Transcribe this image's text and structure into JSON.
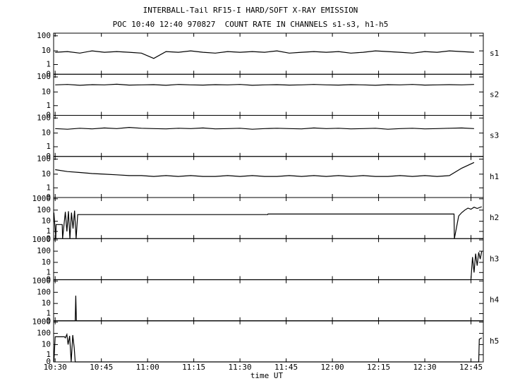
{
  "title": "INTERBALL-Tail RF15-I HARD/SOFT X-RAY EMISSION",
  "subtitle": "POC 10:40 12:40 970827  COUNT RATE IN CHANNELS s1-s3, h1-h5",
  "chart_data": [
    {
      "type": "line",
      "label": "s1",
      "yscale": "log",
      "color": "#000000",
      "ylim": [
        0,
        150
      ],
      "yticks": [
        0,
        1,
        10,
        100
      ],
      "x": [
        630,
        634,
        638,
        642,
        646,
        650,
        654,
        658,
        662,
        666,
        670,
        674,
        678,
        682,
        686,
        690,
        694,
        698,
        702,
        706,
        710,
        714,
        718,
        722,
        726,
        730,
        734,
        738,
        742,
        746,
        750,
        754,
        758,
        762,
        766
      ],
      "values": [
        8,
        9,
        7,
        10,
        8,
        9,
        8,
        7,
        3,
        9,
        8,
        10,
        8,
        7,
        9,
        8,
        9,
        8,
        10,
        7,
        8,
        9,
        8,
        9,
        7,
        8,
        10,
        9,
        8,
        7,
        9,
        8,
        10,
        9,
        8
      ]
    },
    {
      "type": "line",
      "label": "s2",
      "yscale": "log",
      "color": "#000000",
      "ylim": [
        0,
        150
      ],
      "yticks": [
        0,
        1,
        10,
        100
      ],
      "x": [
        630,
        634,
        638,
        642,
        646,
        650,
        654,
        658,
        662,
        666,
        670,
        674,
        678,
        682,
        686,
        690,
        694,
        698,
        702,
        706,
        710,
        714,
        718,
        722,
        726,
        730,
        734,
        738,
        742,
        746,
        750,
        754,
        758,
        762,
        766
      ],
      "values": [
        30,
        32,
        28,
        31,
        30,
        33,
        29,
        30,
        31,
        28,
        32,
        30,
        29,
        31,
        30,
        32,
        28,
        30,
        31,
        29,
        30,
        32,
        30,
        29,
        31,
        30,
        28,
        31,
        30,
        32,
        29,
        30,
        31,
        30,
        32
      ]
    },
    {
      "type": "line",
      "label": "s3",
      "yscale": "log",
      "color": "#000000",
      "ylim": [
        0,
        150
      ],
      "yticks": [
        0,
        1,
        10,
        100
      ],
      "x": [
        630,
        634,
        638,
        642,
        646,
        650,
        654,
        658,
        662,
        666,
        670,
        674,
        678,
        682,
        686,
        690,
        694,
        698,
        702,
        706,
        710,
        714,
        718,
        722,
        726,
        730,
        734,
        738,
        742,
        746,
        750,
        754,
        758,
        762,
        766
      ],
      "values": [
        20,
        18,
        21,
        19,
        22,
        20,
        24,
        21,
        20,
        19,
        21,
        20,
        22,
        19,
        20,
        21,
        18,
        20,
        21,
        20,
        19,
        22,
        20,
        21,
        19,
        20,
        21,
        18,
        20,
        21,
        19,
        20,
        21,
        22,
        20
      ]
    },
    {
      "type": "line",
      "label": "h1",
      "yscale": "log",
      "color": "#000000",
      "ylim": [
        0,
        150
      ],
      "yticks": [
        0,
        1,
        10,
        100
      ],
      "x": [
        630,
        634,
        638,
        642,
        646,
        650,
        654,
        658,
        662,
        666,
        670,
        674,
        678,
        682,
        686,
        690,
        694,
        698,
        702,
        706,
        710,
        714,
        718,
        722,
        726,
        730,
        734,
        738,
        742,
        746,
        750,
        754,
        758,
        762,
        766
      ],
      "values": [
        20,
        15,
        13,
        11,
        10,
        9,
        8,
        8,
        7,
        8,
        7,
        8,
        7,
        7,
        8,
        7,
        8,
        7,
        7,
        8,
        7,
        8,
        7,
        8,
        7,
        8,
        7,
        7,
        8,
        7,
        8,
        7,
        8,
        25,
        60
      ]
    },
    {
      "type": "line",
      "label": "h2",
      "yscale": "log",
      "color": "#000000",
      "ylim": [
        0,
        1300
      ],
      "yticks": [
        0,
        1,
        10,
        100,
        1000
      ],
      "x": [
        629.6,
        630.2,
        630.3,
        632.3,
        632.4,
        633.3,
        633.8,
        634.3,
        634.8,
        635.3,
        635.8,
        636.3,
        636.8,
        637.3,
        699,
        699.1,
        759.5,
        759.6,
        761,
        762,
        763,
        764,
        765,
        766,
        767,
        768.5
      ],
      "values": [
        60,
        0,
        5,
        5,
        0,
        70,
        1,
        80,
        0,
        60,
        2,
        90,
        0,
        40,
        40,
        45,
        45,
        0,
        30,
        60,
        100,
        150,
        120,
        180,
        140,
        200
      ]
    },
    {
      "type": "line",
      "label": "h3",
      "yscale": "log",
      "color": "#000000",
      "ylim": [
        0,
        1300
      ],
      "yticks": [
        0,
        1,
        10,
        100,
        1000
      ],
      "x": [
        629.6,
        765,
        765.5,
        766,
        766.5,
        767,
        767.5,
        768,
        768.5
      ],
      "values": [
        0,
        0,
        30,
        1,
        60,
        5,
        80,
        20,
        100
      ]
    },
    {
      "type": "line",
      "label": "h4",
      "yscale": "log",
      "color": "#000000",
      "ylim": [
        0,
        1300
      ],
      "yticks": [
        0,
        1,
        10,
        100,
        1000
      ],
      "x": [
        629.6,
        636.5,
        636.7,
        636.9,
        768.5
      ],
      "values": [
        0,
        0,
        50,
        0,
        0
      ]
    },
    {
      "type": "line",
      "label": "h5",
      "yscale": "log",
      "color": "#000000",
      "ylim": [
        0,
        1300
      ],
      "yticks": [
        0,
        1,
        10,
        100,
        1000
      ],
      "x": [
        629.6,
        630,
        633,
        633.3,
        633.8,
        634.2,
        634.7,
        635.2,
        635.7,
        636.2,
        636.5,
        767.5,
        767.7,
        768.5
      ],
      "values": [
        0,
        50,
        50,
        40,
        80,
        10,
        60,
        0,
        70,
        5,
        0,
        0,
        30,
        40
      ],
      "x_label": "time UT",
      "xlim": [
        629.5,
        769
      ],
      "xticks": [
        {
          "value": 630,
          "label": "10:30"
        },
        {
          "value": 645,
          "label": "10:45"
        },
        {
          "value": 660,
          "label": "11:00"
        },
        {
          "value": 675,
          "label": "11:15"
        },
        {
          "value": 690,
          "label": "11:30"
        },
        {
          "value": 705,
          "label": "11:45"
        },
        {
          "value": 720,
          "label": "12:00"
        },
        {
          "value": 735,
          "label": "12:15"
        },
        {
          "value": 750,
          "label": "12:30"
        },
        {
          "value": 765,
          "label": "12:45"
        }
      ]
    }
  ]
}
